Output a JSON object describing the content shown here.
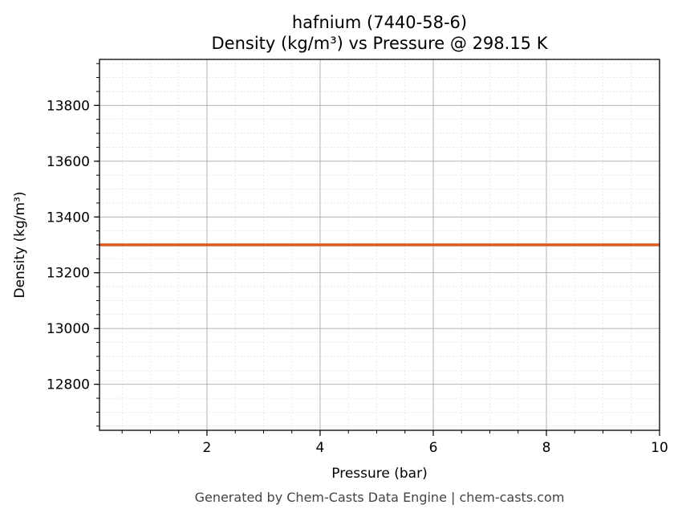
{
  "chart_data": {
    "type": "line",
    "title": "hafnium (7440-58-6)",
    "subtitle": "Density (kg/m³) vs Pressure @ 298.15 K",
    "xlabel": "Pressure (bar)",
    "ylabel": "Density (kg/m³)",
    "xlim": [
      0.1,
      10
    ],
    "ylim": [
      12635,
      13965
    ],
    "xticks": [
      2,
      4,
      6,
      8,
      10
    ],
    "yticks": [
      12800,
      13000,
      13200,
      13400,
      13600,
      13800
    ],
    "grid": true,
    "series": [
      {
        "x": [
          0.1,
          10
        ],
        "y": [
          13300,
          13300
        ],
        "color": "#e05a20"
      }
    ]
  },
  "footer": "Generated by Chem-Casts Data Engine | chem-casts.com"
}
